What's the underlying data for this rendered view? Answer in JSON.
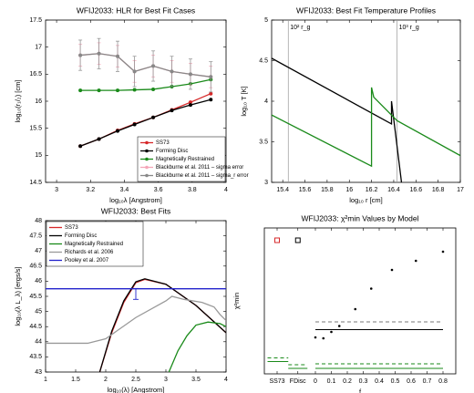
{
  "chart_data": [
    {
      "type": "line",
      "title": "WFIJ2033: HLR for Best Fit Cases",
      "xlabel": "log₁₀λ [Angstrom]",
      "ylabel": "log₁₀(r₁/₂) [cm]",
      "x": [
        3.14,
        3.25,
        3.36,
        3.46,
        3.57,
        3.68,
        3.79,
        3.91
      ],
      "xlim": [
        2.935,
        4
      ],
      "xticks": [
        3,
        3.2,
        3.4,
        3.6,
        3.8,
        4
      ],
      "ylim": [
        14.5,
        17.5
      ],
      "yticks": [
        14.5,
        15,
        15.5,
        16,
        16.5,
        17,
        17.5
      ],
      "legend": "lower right",
      "series": [
        {
          "name": "SS73",
          "color": "#d62728",
          "marker": "o",
          "values": [
            15.17,
            15.3,
            15.46,
            15.58,
            15.7,
            15.84,
            15.98,
            16.14
          ]
        },
        {
          "name": "Forming Disc",
          "color": "#000000",
          "marker": "o",
          "values": [
            15.17,
            15.3,
            15.45,
            15.57,
            15.7,
            15.83,
            15.93,
            16.03
          ]
        },
        {
          "name": "Magnetically Restrained",
          "color": "#1a8a1a",
          "marker": "o",
          "values": [
            16.2,
            16.2,
            16.2,
            16.21,
            16.22,
            16.27,
            16.32,
            16.4
          ]
        },
        {
          "name": "Blackburne et al. 2011 – sigma error",
          "color": "#f4a6b8",
          "marker": "o",
          "values": [
            16.85,
            16.88,
            16.83,
            16.55,
            16.65,
            16.55,
            16.5,
            16.45
          ],
          "errors": [
            0.2,
            0.2,
            0.2,
            0.2,
            0.2,
            0.2,
            0.2,
            0.2
          ]
        },
        {
          "name": "Blackburne et al. 2011 – sigma_r error",
          "color": "#888888",
          "marker": "o",
          "values": [
            16.85,
            16.88,
            16.83,
            16.55,
            16.65,
            16.55,
            16.5,
            16.45
          ],
          "errors": [
            0.28,
            0.28,
            0.28,
            0.28,
            0.28,
            0.28,
            0.28,
            0.28
          ]
        }
      ]
    },
    {
      "type": "line",
      "title": "WFIJ2033: Best Fit Temperature Profiles",
      "xlabel": "log₁₀ r [cm]",
      "ylabel": "log₁₀ T [K]",
      "xlim": [
        15.3,
        17
      ],
      "xticks": [
        15.4,
        15.6,
        15.8,
        16,
        16.2,
        16.4,
        16.6,
        16.8,
        17
      ],
      "ylim": [
        3,
        5
      ],
      "yticks": [
        3,
        3.5,
        4,
        4.5,
        5
      ],
      "vlines": [
        {
          "x": 15.45,
          "label": "10² r_g"
        },
        {
          "x": 16.43,
          "label": "10³ r_g"
        }
      ],
      "series": [
        {
          "color": "#000000",
          "x": [
            15.3,
            16.38,
            16.38,
            16.47
          ],
          "values": [
            4.53,
            3.72,
            4.0,
            3.0
          ]
        },
        {
          "color": "#1a8a1a",
          "x": [
            15.3,
            16.2,
            16.2,
            16.22,
            16.43,
            17
          ],
          "values": [
            3.83,
            3.2,
            4.17,
            4.05,
            3.76,
            3.33
          ]
        }
      ]
    },
    {
      "type": "line",
      "title": "WFIJ2033: Best Fits",
      "xlabel": "log₁₀(λ) [Angstrom]",
      "ylabel": "log₁₀(λ L_λ) [ergs/s]",
      "xlim": [
        1,
        4
      ],
      "xticks": [
        1,
        1.5,
        2,
        2.5,
        3,
        3.5,
        4
      ],
      "ylim": [
        43,
        48
      ],
      "yticks": [
        43,
        43.5,
        44,
        44.5,
        45,
        45.5,
        46,
        46.5,
        47,
        47.5,
        48
      ],
      "legend": "upper left",
      "series": [
        {
          "name": "SS73",
          "color": "#d62728",
          "x": [
            1.9,
            2.1,
            2.3,
            2.5,
            2.65,
            3,
            3.5,
            4
          ],
          "values": [
            43,
            44.3,
            45.3,
            45.95,
            46.06,
            45.9,
            45.2,
            44.3
          ]
        },
        {
          "name": "Forming Disc",
          "color": "#000000",
          "x": [
            1.9,
            2.1,
            2.3,
            2.5,
            2.65,
            3,
            3.5,
            4
          ],
          "values": [
            43,
            44.35,
            45.35,
            45.98,
            46.08,
            45.9,
            45.2,
            44.3
          ]
        },
        {
          "name": "Magnetically Restrained",
          "color": "#1a8a1a",
          "x": [
            3.05,
            3.2,
            3.35,
            3.5,
            3.7,
            3.9,
            4
          ],
          "values": [
            43,
            43.7,
            44.2,
            44.55,
            44.65,
            44.6,
            44.5
          ]
        },
        {
          "name": "Richards et al. 2006",
          "color": "#999999",
          "x": [
            1,
            1.7,
            2,
            2.5,
            3,
            3.1,
            3.3,
            3.6,
            3.8,
            3.9,
            4
          ],
          "values": [
            43.95,
            43.95,
            44.1,
            44.8,
            45.35,
            45.5,
            45.4,
            45.3,
            45.15,
            44.9,
            44.7
          ]
        },
        {
          "name": "Pooley et al. 2007",
          "color": "#2222cc",
          "x": [
            1,
            4
          ],
          "values": [
            45.75,
            45.75
          ]
        }
      ],
      "errorbars": [
        {
          "x": 2.5,
          "value": 45.58,
          "error": 0.18,
          "color": "#2222cc"
        }
      ]
    },
    {
      "type": "scatter",
      "title": "WFIJ2033: χ²min Values by Model",
      "xlabel": "f",
      "ylabel": "χ²min",
      "xlim": [
        -0.32,
        0.88
      ],
      "xticks": [
        {
          "value": -0.24,
          "label": "SS73"
        },
        {
          "value": -0.11,
          "label": "FDisc"
        },
        0,
        0.1,
        0.2,
        0.3,
        0.4,
        0.5,
        0.6,
        0.7,
        0.8
      ],
      "ylim": [
        0,
        320
      ],
      "series": [
        {
          "color": "#000000",
          "marker": ".",
          "x": [
            0,
            0.05,
            0.1,
            0.15,
            0.25,
            0.35,
            0.48,
            0.63,
            0.8
          ],
          "values": [
            80,
            78,
            92,
            105,
            142,
            187,
            228,
            248,
            268
          ]
        },
        {
          "color": "#d62728",
          "marker": "s",
          "x": [
            -0.24
          ],
          "values": [
            293
          ]
        },
        {
          "color": "#000000",
          "marker": "s",
          "x": [
            -0.11
          ],
          "values": [
            293
          ]
        }
      ],
      "hlines": [
        {
          "x": [
            0,
            0.8
          ],
          "value": 97,
          "color": "#000000",
          "style": "solid"
        },
        {
          "x": [
            0,
            0.8
          ],
          "value": 114,
          "color": "#777777",
          "style": "dashed"
        },
        {
          "x": [
            0,
            0.8
          ],
          "value": 22,
          "color": "#1a8a1a",
          "style": "dashed"
        },
        {
          "x": [
            0,
            0.8
          ],
          "value": 12,
          "color": "#1a8a1a",
          "style": "solid"
        },
        {
          "x": [
            -0.3,
            -0.17
          ],
          "value": 35,
          "color": "#1a8a1a",
          "style": "dashed"
        },
        {
          "x": [
            -0.3,
            -0.17
          ],
          "value": 27,
          "color": "#1a8a1a",
          "style": "solid"
        },
        {
          "x": [
            -0.17,
            -0.05
          ],
          "value": 20,
          "color": "#1a8a1a",
          "style": "dashed"
        },
        {
          "x": [
            -0.17,
            -0.05
          ],
          "value": 12,
          "color": "#1a8a1a",
          "style": "solid"
        }
      ]
    }
  ]
}
